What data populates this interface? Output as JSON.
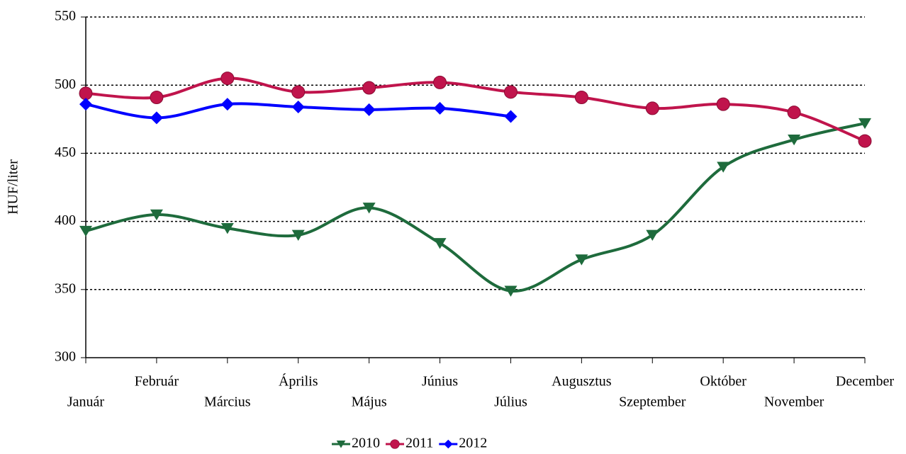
{
  "chart_data": {
    "type": "line",
    "y_label": "HUF/liter",
    "categories": [
      "Január",
      "Február",
      "Március",
      "Április",
      "Május",
      "Június",
      "Július",
      "Augusztus",
      "Szeptember",
      "Október",
      "November",
      "December"
    ],
    "series": [
      {
        "name": "2010",
        "color": "#1e6b3c",
        "marker": "triangle-down",
        "values": [
          393,
          405,
          395,
          390,
          410,
          384,
          349,
          372,
          390,
          440,
          460,
          472
        ]
      },
      {
        "name": "2011",
        "color": "#c0144c",
        "marker": "circle",
        "values": [
          494,
          491,
          505,
          495,
          498,
          502,
          495,
          491,
          483,
          486,
          480,
          459
        ]
      },
      {
        "name": "2012",
        "color": "#0000ff",
        "marker": "diamond",
        "values": [
          486,
          476,
          486,
          484,
          482,
          483,
          477,
          null,
          null,
          null,
          null,
          null
        ]
      }
    ],
    "ylim": [
      300,
      550
    ],
    "yticks": [
      300,
      350,
      400,
      450,
      500,
      550
    ],
    "grid": true,
    "smooth": true,
    "legend": "bottom"
  }
}
